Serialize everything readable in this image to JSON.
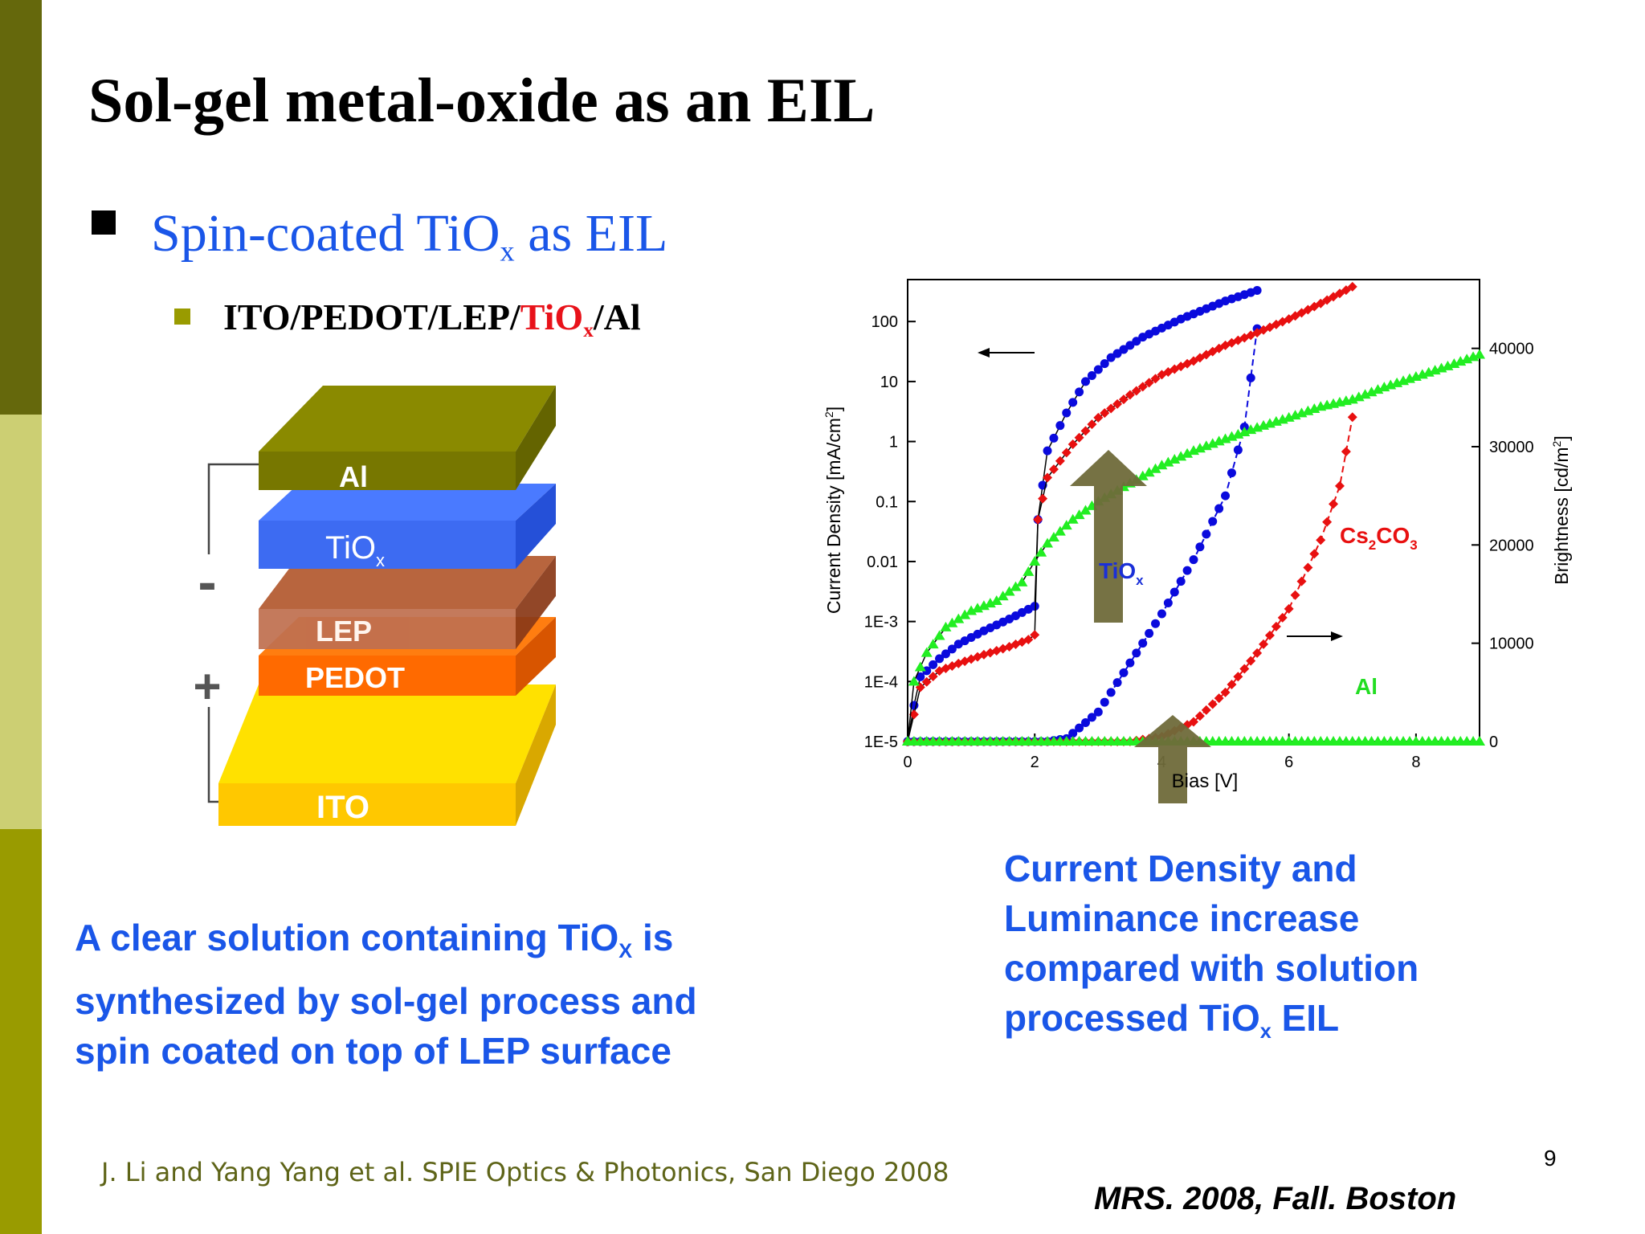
{
  "slide": {
    "title": "Sol-gel metal-oxide as an EIL",
    "bullet1": {
      "pre": "Spin-coated TiO",
      "sub": "x",
      "post": " as EIL"
    },
    "bullet2": {
      "pre": "ITO/PEDOT/LEP/",
      "red": "TiO",
      "red_sub": "x",
      "post": "/Al"
    },
    "paragraph_left": {
      "l1a": "A clear solution containing TiO",
      "l1sub": "X",
      "l1b": " is",
      "l2": "synthesized by sol-gel process and",
      "l3": "spin coated on top of LEP surface"
    },
    "paragraph_right": {
      "l1": "Current Density and",
      "l2": "Luminance increase",
      "l3": "compared with solution",
      "l4a": "processed TiO",
      "l4sub": "x",
      "l4b": " EIL"
    },
    "citation": "J. Li and Yang Yang et al. SPIE Optics & Photonics, San Diego 2008",
    "conference": "MRS. 2008, Fall. Boston",
    "page_number": "9"
  },
  "device_stack": {
    "layers": [
      {
        "label": "Al",
        "color": "#8a8a00"
      },
      {
        "label": "TiO",
        "label_sub": "x",
        "color": "#3a66f0"
      },
      {
        "label": "LEP",
        "color": "#a84a22"
      },
      {
        "label": "PEDOT",
        "color": "#ff6a00"
      },
      {
        "label": "ITO",
        "color": "#ffcc00"
      }
    ],
    "minus_sign": "-",
    "plus_sign": "+"
  },
  "chart_data": {
    "type": "scatter",
    "xlabel": "Bias [V]",
    "ylabel_left": "Current Density [mA/cm",
    "ylabel_left_sup": "2",
    "ylabel_left_end": "]",
    "ylabel_right": "Brightness [cd/m",
    "ylabel_right_sup": "2",
    "ylabel_right_end": "]",
    "x_range": [
      0,
      9
    ],
    "x_ticks": [
      "0",
      "2",
      "4",
      "6",
      "8"
    ],
    "y_left_scale": "log",
    "y_left_range": [
      1e-05,
      500
    ],
    "y_left_ticks": [
      "1E-5",
      "1E-4",
      "1E-3",
      "0.01",
      "0.1",
      "1",
      "10",
      "100"
    ],
    "y_right_range": [
      0,
      47000
    ],
    "y_right_ticks": [
      "0",
      "10000",
      "20000",
      "30000",
      "40000"
    ],
    "annotations": {
      "tiox": {
        "text": "TiO",
        "sub": "x"
      },
      "cs2co3": {
        "t1": "Cs",
        "s1": "2",
        "t2": "CO",
        "s2": "3"
      },
      "al": {
        "text": "Al"
      }
    },
    "series": [
      {
        "label": "TiOx",
        "color": "#0a0add",
        "marker": "circle",
        "current_density": [
          [
            0.0,
            1e-05
          ],
          [
            0.1,
            4e-05
          ],
          [
            0.2,
            0.00012
          ],
          [
            0.5,
            0.00024
          ],
          [
            0.8,
            0.00042
          ],
          [
            1.2,
            0.0007
          ],
          [
            1.6,
            0.0011
          ],
          [
            1.9,
            0.0016
          ],
          [
            2.0,
            0.0018
          ],
          [
            2.05,
            0.05
          ],
          [
            2.2,
            0.7
          ],
          [
            2.5,
            3
          ],
          [
            2.8,
            10
          ],
          [
            3.2,
            25
          ],
          [
            3.7,
            55
          ],
          [
            4.3,
            110
          ],
          [
            5.0,
            220
          ],
          [
            5.5,
            330
          ]
        ],
        "brightness": [
          [
            0,
            0
          ],
          [
            2.2,
            0
          ],
          [
            2.5,
            300
          ],
          [
            3.0,
            3000
          ],
          [
            3.5,
            8000
          ],
          [
            4.0,
            13000
          ],
          [
            4.5,
            18500
          ],
          [
            5.0,
            25000
          ],
          [
            5.3,
            32000
          ],
          [
            5.5,
            42000
          ]
        ]
      },
      {
        "label": "Cs2CO3",
        "color": "#e81010",
        "marker": "diamond",
        "current_density": [
          [
            0.0,
            1e-05
          ],
          [
            0.2,
            8e-05
          ],
          [
            0.5,
            0.00015
          ],
          [
            0.8,
            0.0002
          ],
          [
            1.2,
            0.00028
          ],
          [
            1.6,
            0.00038
          ],
          [
            1.9,
            0.0005
          ],
          [
            2.0,
            0.0006
          ],
          [
            2.05,
            0.05
          ],
          [
            2.2,
            0.25
          ],
          [
            2.6,
            0.9
          ],
          [
            3.0,
            2.5
          ],
          [
            3.5,
            6
          ],
          [
            4.0,
            13
          ],
          [
            4.5,
            22
          ],
          [
            5.0,
            40
          ],
          [
            5.5,
            65
          ],
          [
            6.0,
            110
          ],
          [
            6.5,
            200
          ],
          [
            7.0,
            380
          ]
        ],
        "brightness": [
          [
            0,
            0
          ],
          [
            3.5,
            0
          ],
          [
            4.0,
            500
          ],
          [
            4.5,
            2000
          ],
          [
            5.0,
            5000
          ],
          [
            5.5,
            9000
          ],
          [
            6.0,
            13500
          ],
          [
            6.5,
            20500
          ],
          [
            6.8,
            26000
          ],
          [
            7.0,
            33000
          ]
        ]
      },
      {
        "label": "Al",
        "color": "#22ee22",
        "marker": "triangle",
        "current_density": [
          [
            0.0,
            1e-05
          ],
          [
            0.1,
            0.0001
          ],
          [
            0.3,
            0.0003
          ],
          [
            0.6,
            0.0008
          ],
          [
            1.0,
            0.0015
          ],
          [
            1.4,
            0.0022
          ],
          [
            1.8,
            0.0045
          ],
          [
            2.0,
            0.01
          ],
          [
            2.2,
            0.02
          ],
          [
            2.6,
            0.05
          ],
          [
            3.0,
            0.1
          ],
          [
            3.5,
            0.2
          ],
          [
            4.0,
            0.4
          ],
          [
            4.5,
            0.7
          ],
          [
            5.0,
            1.1
          ],
          [
            5.5,
            1.7
          ],
          [
            6.0,
            2.5
          ],
          [
            6.5,
            3.8
          ],
          [
            7.0,
            5
          ],
          [
            7.5,
            8
          ],
          [
            8.0,
            12
          ],
          [
            8.5,
            18
          ],
          [
            9.0,
            28
          ]
        ],
        "brightness": [
          [
            0,
            0
          ],
          [
            9,
            0
          ]
        ]
      }
    ],
    "arrows": [
      {
        "direction": "left",
        "label": ""
      },
      {
        "direction": "right",
        "label": ""
      }
    ]
  }
}
